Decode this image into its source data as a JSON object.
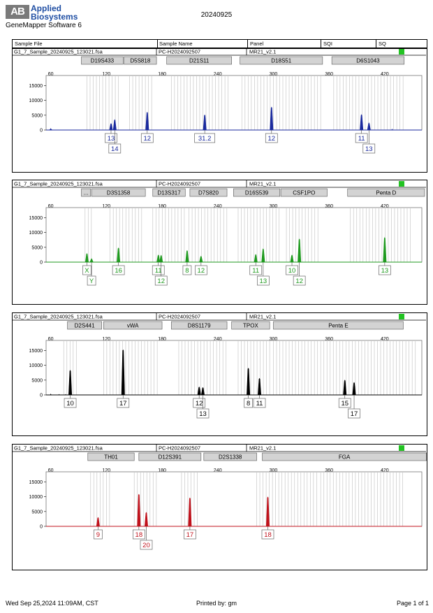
{
  "header": {
    "logo_mark": "AB",
    "brand_line1": "Applied",
    "brand_line2": "Biosystems",
    "software": "GeneMapper Software 6",
    "date": "20240925"
  },
  "columns": {
    "sample_file": "Sample File",
    "sample_name": "Sample Name",
    "panel": "Panel",
    "sqi": "SQI",
    "sq": "SQ"
  },
  "footer": {
    "timestamp": "Wed Sep 25,2024 11:09AM, CST",
    "printed_by": "Printed by: gm",
    "page": "Page 1 of 1"
  },
  "colors": {
    "blue": "#1a2a9e",
    "green": "#1f9a1f",
    "black": "#000000",
    "red": "#c0111b",
    "status": "#22c322",
    "bin": "#c8c8c8"
  },
  "chart_data": [
    {
      "type": "line",
      "dye": "blue",
      "sample_file": "G1_7_Sample_20240925_123021.fsa",
      "sample_name": "PC-H2024092507",
      "panel": "MR21_v2.1",
      "xlim": [
        55,
        460
      ],
      "ylim": [
        0,
        17000
      ],
      "x_ticks": [
        60,
        120,
        180,
        240,
        300,
        360,
        420
      ],
      "y_ticks": [
        0,
        5000,
        10000,
        15000
      ],
      "grid": false,
      "loci": [
        {
          "name": "D19S433",
          "start": 93,
          "end": 138
        },
        {
          "name": "D5S818",
          "start": 139,
          "end": 174
        },
        {
          "name": "D21S11",
          "start": 185,
          "end": 255
        },
        {
          "name": "D18S51",
          "start": 264,
          "end": 353
        },
        {
          "name": "D6S1043",
          "start": 363,
          "end": 441
        }
      ],
      "peaks": [
        {
          "x": 60,
          "height": 500
        },
        {
          "x": 125,
          "height": 2200
        },
        {
          "x": 129,
          "height": 3500
        },
        {
          "x": 164,
          "height": 6000
        },
        {
          "x": 226,
          "height": 5100
        },
        {
          "x": 298,
          "height": 7700
        },
        {
          "x": 395,
          "height": 5200
        },
        {
          "x": 403,
          "height": 2400
        },
        {
          "x": 428,
          "height": 300
        }
      ],
      "bins": [
        [
          99,
          135
        ],
        [
          145,
          172
        ],
        [
          190,
          252
        ],
        [
          266,
          352
        ],
        [
          365,
          440
        ]
      ],
      "alleles": [
        {
          "label": "13",
          "x": 125,
          "row": 1
        },
        {
          "label": "14",
          "x": 129,
          "row": 2
        },
        {
          "label": "12",
          "x": 164,
          "row": 1
        },
        {
          "label": "31.2",
          "x": 226,
          "row": 1
        },
        {
          "label": "12",
          "x": 298,
          "row": 1
        },
        {
          "label": "11",
          "x": 395,
          "row": 1
        },
        {
          "label": "13",
          "x": 403,
          "row": 2
        }
      ]
    },
    {
      "type": "line",
      "dye": "green",
      "sample_file": "G1_7_Sample_20240925_123021.fsa",
      "sample_name": "PC-H2024092507",
      "panel": "MR21_v2.1",
      "xlim": [
        55,
        460
      ],
      "ylim": [
        0,
        17000
      ],
      "x_ticks": [
        60,
        120,
        180,
        240,
        300,
        360,
        420
      ],
      "y_ticks": [
        0,
        5000,
        10000,
        15000
      ],
      "grid": false,
      "loci": [
        {
          "name": "...",
          "start": 93,
          "end": 103
        },
        {
          "name": "D3S1358",
          "start": 104,
          "end": 162
        },
        {
          "name": "D13S317",
          "start": 170,
          "end": 205
        },
        {
          "name": "D7S820",
          "start": 210,
          "end": 250
        },
        {
          "name": "D16S539",
          "start": 257,
          "end": 307
        },
        {
          "name": "CSF1PO",
          "start": 308,
          "end": 358
        },
        {
          "name": "Penta D",
          "start": 380,
          "end": 463
        }
      ],
      "peaks": [
        {
          "x": 99,
          "height": 2900
        },
        {
          "x": 104,
          "height": 1200
        },
        {
          "x": 133,
          "height": 4800
        },
        {
          "x": 176,
          "height": 2400
        },
        {
          "x": 179,
          "height": 2300
        },
        {
          "x": 207,
          "height": 3900
        },
        {
          "x": 222,
          "height": 2000
        },
        {
          "x": 281,
          "height": 2600
        },
        {
          "x": 289,
          "height": 4500
        },
        {
          "x": 320,
          "height": 2400
        },
        {
          "x": 328,
          "height": 7800
        },
        {
          "x": 420,
          "height": 8300
        }
      ],
      "bins": [
        [
          97,
          106
        ],
        [
          124,
          160
        ],
        [
          170,
          205
        ],
        [
          209,
          250
        ],
        [
          262,
          307
        ],
        [
          314,
          350
        ],
        [
          383,
          448
        ]
      ],
      "alleles": [
        {
          "label": "X",
          "x": 99,
          "row": 1
        },
        {
          "label": "Y",
          "x": 104,
          "row": 2
        },
        {
          "label": "16",
          "x": 133,
          "row": 1
        },
        {
          "label": "11",
          "x": 176,
          "row": 1
        },
        {
          "label": "12",
          "x": 179,
          "row": 2
        },
        {
          "label": "8",
          "x": 207,
          "row": 1
        },
        {
          "label": "12",
          "x": 222,
          "row": 1
        },
        {
          "label": "11",
          "x": 281,
          "row": 1
        },
        {
          "label": "13",
          "x": 289,
          "row": 2
        },
        {
          "label": "10",
          "x": 320,
          "row": 1
        },
        {
          "label": "12",
          "x": 328,
          "row": 2
        },
        {
          "label": "13",
          "x": 420,
          "row": 1
        }
      ]
    },
    {
      "type": "line",
      "dye": "black",
      "sample_file": "G1_7_Sample_20240925_123021.fsa",
      "sample_name": "PC-H2024092507",
      "panel": "MR21_v2.1",
      "xlim": [
        55,
        460
      ],
      "ylim": [
        0,
        17000
      ],
      "x_ticks": [
        60,
        120,
        180,
        240,
        300,
        360,
        420
      ],
      "y_ticks": [
        0,
        5000,
        10000,
        15000
      ],
      "grid": false,
      "loci": [
        {
          "name": "D2S441",
          "start": 78,
          "end": 115
        },
        {
          "name": "vWA",
          "start": 117,
          "end": 180
        },
        {
          "name": "D8S1179",
          "start": 190,
          "end": 250
        },
        {
          "name": "TPOX",
          "start": 255,
          "end": 296
        },
        {
          "name": "Penta E",
          "start": 300,
          "end": 440
        }
      ],
      "peaks": [
        {
          "x": 60,
          "height": 300
        },
        {
          "x": 69,
          "height": 200
        },
        {
          "x": 76,
          "height": 200
        },
        {
          "x": 81,
          "height": 8300
        },
        {
          "x": 138,
          "height": 15200
        },
        {
          "x": 220,
          "height": 2700
        },
        {
          "x": 224,
          "height": 2500
        },
        {
          "x": 273,
          "height": 9000
        },
        {
          "x": 285,
          "height": 5600
        },
        {
          "x": 377,
          "height": 5000
        },
        {
          "x": 387,
          "height": 4200
        }
      ],
      "bins": [
        [
          74,
          88
        ],
        [
          117,
          178
        ],
        [
          198,
          250
        ],
        [
          262,
          298
        ],
        [
          300,
          454
        ]
      ],
      "alleles": [
        {
          "label": "10",
          "x": 81,
          "row": 1
        },
        {
          "label": "17",
          "x": 138,
          "row": 1
        },
        {
          "label": "12",
          "x": 220,
          "row": 1
        },
        {
          "label": "13",
          "x": 224,
          "row": 2
        },
        {
          "label": "8",
          "x": 273,
          "row": 1
        },
        {
          "label": "11",
          "x": 285,
          "row": 1
        },
        {
          "label": "15",
          "x": 377,
          "row": 1
        },
        {
          "label": "17",
          "x": 387,
          "row": 2
        }
      ]
    },
    {
      "type": "line",
      "dye": "red",
      "sample_file": "G1_7_Sample_20240925_123021.fsa",
      "sample_name": "PC-H2024092507",
      "panel": "MR21_v2.1",
      "xlim": [
        55,
        460
      ],
      "ylim": [
        0,
        17000
      ],
      "x_ticks": [
        60,
        120,
        180,
        240,
        300,
        360,
        420
      ],
      "y_ticks": [
        0,
        5000,
        10000,
        15000
      ],
      "grid": false,
      "loci": [
        {
          "name": "TH01",
          "start": 100,
          "end": 150
        },
        {
          "name": "D12S391",
          "start": 155,
          "end": 222
        },
        {
          "name": "D2S1338",
          "start": 225,
          "end": 282
        },
        {
          "name": "FGA",
          "start": 288,
          "end": 465
        }
      ],
      "peaks": [
        {
          "x": 111,
          "height": 3000
        },
        {
          "x": 155,
          "height": 10800
        },
        {
          "x": 163,
          "height": 4700
        },
        {
          "x": 210,
          "height": 9600
        },
        {
          "x": 294,
          "height": 9900
        }
      ],
      "bins": [
        [
          103,
          125
        ],
        [
          150,
          175
        ],
        [
          201,
          218
        ],
        [
          282,
          347
        ],
        [
          351,
          440
        ]
      ],
      "alleles": [
        {
          "label": "9",
          "x": 111,
          "row": 1
        },
        {
          "label": "18",
          "x": 155,
          "row": 1
        },
        {
          "label": "20",
          "x": 163,
          "row": 2
        },
        {
          "label": "17",
          "x": 210,
          "row": 1
        },
        {
          "label": "18",
          "x": 294,
          "row": 1
        }
      ]
    }
  ]
}
